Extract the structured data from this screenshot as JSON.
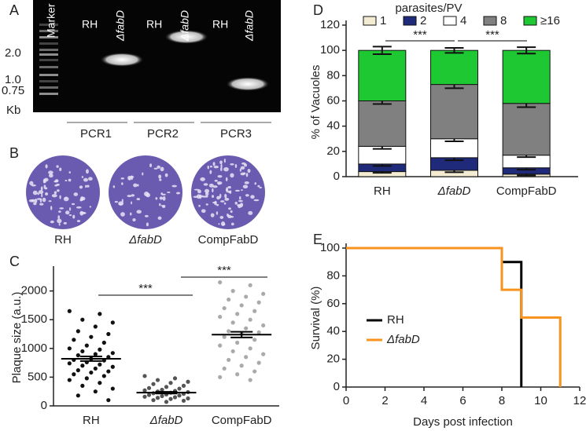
{
  "gel": {
    "label": "A",
    "marker": "Marker",
    "lanes": [
      "RH",
      "ΔfabD",
      "RH",
      "ΔfabD",
      "RH",
      "ΔfabD"
    ],
    "sizes": [
      "2.0",
      "1.0",
      "0.75"
    ],
    "unit": "Kb",
    "pcrs": [
      "PCR1",
      "PCR2",
      "PCR3"
    ]
  },
  "plaque": {
    "label": "B",
    "strains": [
      "RH",
      "ΔfabD",
      "CompFabD"
    ]
  },
  "chart_data": [
    {
      "type": "strip",
      "panel": "C",
      "y_label": "Plaque size (a.u.)",
      "categories": [
        "RH",
        "ΔfabD",
        "CompFabD"
      ],
      "ylim": [
        0,
        2350
      ],
      "yticks": [
        0,
        500,
        1000,
        1500,
        2000
      ],
      "annotations": [
        "***",
        "***"
      ],
      "groups": [
        {
          "color": "#111111",
          "mean": 820,
          "sem": 40,
          "values": [
            1650,
            1600,
            1500,
            1450,
            1380,
            1300,
            1250,
            1200,
            1150,
            1100,
            1050,
            1000,
            980,
            950,
            920,
            900,
            880,
            850,
            820,
            800,
            790,
            760,
            740,
            720,
            700,
            680,
            650,
            620,
            600,
            580,
            550,
            520,
            480,
            450,
            400,
            350,
            300,
            250,
            180,
            100
          ]
        },
        {
          "color": "#555555",
          "mean": 230,
          "sem": 15,
          "values": [
            520,
            480,
            450,
            420,
            400,
            380,
            350,
            330,
            310,
            300,
            280,
            270,
            260,
            250,
            240,
            230,
            220,
            210,
            200,
            190,
            180,
            170,
            160,
            150,
            140,
            130,
            120,
            100,
            90,
            70
          ]
        },
        {
          "color": "#aaaaaa",
          "mean": 1240,
          "sem": 50,
          "values": [
            2150,
            2100,
            2000,
            1950,
            1900,
            1850,
            1800,
            1750,
            1700,
            1650,
            1600,
            1550,
            1500,
            1450,
            1400,
            1350,
            1300,
            1280,
            1250,
            1200,
            1150,
            1100,
            1050,
            1000,
            950,
            900,
            850,
            800,
            750,
            700,
            650,
            600,
            550,
            500,
            450
          ]
        }
      ]
    },
    {
      "type": "stacked",
      "panel": "D",
      "y_label": "% of Vacuoles",
      "legend_title": "parasites/PV",
      "categories": [
        "RH",
        "ΔfabD",
        "CompFabD"
      ],
      "ylim": [
        0,
        120
      ],
      "yticks": [
        0,
        20,
        40,
        60,
        80,
        100,
        120
      ],
      "annotations": [
        "***",
        "***"
      ],
      "series": [
        {
          "name": "1",
          "color": "#f3ecd2",
          "values": [
            4,
            5,
            2
          ],
          "errors": [
            1,
            1.5,
            1
          ]
        },
        {
          "name": "2",
          "color": "#1f2a7a",
          "values": [
            6,
            10,
            5
          ],
          "errors": [
            1.5,
            2,
            1.5
          ]
        },
        {
          "name": "4",
          "color": "#ffffff",
          "values": [
            14,
            15,
            10
          ],
          "errors": [
            2,
            2,
            1.5
          ]
        },
        {
          "name": "8",
          "color": "#808080",
          "values": [
            36,
            43,
            41
          ],
          "errors": [
            2.5,
            3,
            3
          ]
        },
        {
          "name": "≥16",
          "color": "#1ec832",
          "values": [
            40,
            27,
            42
          ],
          "errors": [
            3,
            2,
            2.5
          ]
        }
      ]
    },
    {
      "type": "step",
      "panel": "E",
      "x_label": "Days post infection",
      "y_label": "Survival (%)",
      "xlim": [
        0,
        12
      ],
      "xticks": [
        0,
        2,
        4,
        6,
        8,
        10,
        12
      ],
      "ylim": [
        0,
        100
      ],
      "yticks": [
        0,
        20,
        40,
        60,
        80,
        100
      ],
      "series": [
        {
          "name": "RH",
          "color": "#000000",
          "x": [
            0,
            8,
            9
          ],
          "values": [
            100,
            90,
            0
          ]
        },
        {
          "name": "ΔfabD",
          "color": "#f7931e",
          "x": [
            0,
            8,
            9,
            11
          ],
          "values": [
            100,
            70,
            50,
            0
          ]
        }
      ]
    }
  ]
}
